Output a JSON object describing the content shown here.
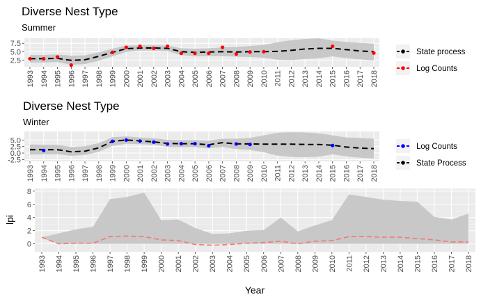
{
  "colors": {
    "panel_bg": "#ebebeb",
    "grid_major": "#ffffff",
    "ribbon": "#c8c8c8",
    "state_line": "#000000",
    "log_counts_summer": "#ff0000",
    "log_counts_winter": "#0000ff",
    "lpi_line": "#f8766d"
  },
  "chart_data": [
    {
      "type": "line",
      "title": "Diverse Nest Type",
      "subtitle": "Summer",
      "xlabel": "",
      "ylabel": "",
      "x": [
        1993,
        1994,
        1995,
        1996,
        1997,
        1998,
        1999,
        2000,
        2001,
        2002,
        2003,
        2004,
        2005,
        2006,
        2007,
        2008,
        2009,
        2010,
        2011,
        2012,
        2013,
        2014,
        2015,
        2016,
        2017,
        2018
      ],
      "xlim": [
        1992.8,
        2018.2
      ],
      "ylim": [
        0.5,
        9.0
      ],
      "yticks": [
        2.5,
        5.0,
        7.5
      ],
      "ytick_labels": [
        "2.5",
        "5.0",
        "7.5"
      ],
      "grid": true,
      "legend_position": "right",
      "series": [
        {
          "name": "State process",
          "kind": "line-dashed-with-end-points",
          "color": "#000000",
          "values": [
            2.9,
            2.9,
            3.0,
            2.4,
            2.6,
            3.6,
            4.8,
            5.9,
            6.1,
            6.1,
            6.0,
            5.0,
            4.8,
            4.9,
            5.0,
            4.9,
            5.0,
            5.0,
            5.1,
            5.4,
            5.8,
            6.0,
            6.0,
            5.6,
            5.2,
            5.0
          ]
        },
        {
          "name": "Log Counts",
          "kind": "points",
          "color": "#ff0000",
          "x": [
            1993,
            1994,
            1995,
            1996,
            1999,
            2000,
            2001,
            2002,
            2003,
            2004,
            2005,
            2006,
            2007,
            2008,
            2009,
            2010,
            2015,
            2018
          ],
          "values": [
            2.9,
            2.9,
            3.4,
            1.0,
            4.8,
            6.3,
            6.6,
            6.0,
            6.6,
            4.5,
            4.5,
            4.5,
            6.3,
            4.3,
            4.9,
            5.0,
            6.6,
            4.6
          ]
        },
        {
          "name": "",
          "kind": "ribbon",
          "color": "#c8c8c8",
          "lower": [
            1.8,
            1.8,
            1.9,
            1.1,
            1.3,
            2.3,
            3.6,
            4.9,
            5.3,
            5.3,
            5.1,
            4.0,
            3.6,
            3.7,
            3.7,
            3.5,
            3.4,
            3.2,
            2.6,
            2.5,
            2.8,
            3.0,
            3.6,
            3.1,
            2.7,
            2.4
          ],
          "upper": [
            4.0,
            4.0,
            4.2,
            3.8,
            3.9,
            4.8,
            5.9,
            6.8,
            6.9,
            6.9,
            6.8,
            6.0,
            5.9,
            6.0,
            6.3,
            6.4,
            6.7,
            7.0,
            7.8,
            8.4,
            8.8,
            9.0,
            8.3,
            7.9,
            7.6,
            7.4
          ]
        }
      ]
    },
    {
      "type": "line",
      "title": "Diverse Nest Type",
      "subtitle": "Winter",
      "xlabel": "",
      "ylabel": "",
      "x": [
        1993,
        1994,
        1995,
        1996,
        1997,
        1998,
        1999,
        2000,
        2001,
        2002,
        2003,
        2004,
        2005,
        2006,
        2007,
        2008,
        2009,
        2010,
        2011,
        2012,
        2013,
        2014,
        2015,
        2016,
        2017,
        2018
      ],
      "xlim": [
        1992.8,
        2018.2
      ],
      "ylim": [
        -3.2,
        8.3
      ],
      "yticks": [
        -2.5,
        0.0,
        2.5,
        5.0
      ],
      "ytick_labels": [
        "-2.5",
        "0.0",
        "2.5",
        "5.0"
      ],
      "grid": true,
      "legend_position": "right",
      "series": [
        {
          "name": "Log Counts",
          "kind": "points",
          "color": "#0000ff",
          "x": [
            1994,
            1999,
            2000,
            2001,
            2002,
            2003,
            2004,
            2005,
            2006,
            2008,
            2009,
            2015
          ],
          "values": [
            1.0,
            4.5,
            5.0,
            4.6,
            4.2,
            3.5,
            3.6,
            3.6,
            2.8,
            3.5,
            3.3,
            2.9
          ]
        },
        {
          "name": "State Process",
          "kind": "line-dashed-with-end-points",
          "color": "#000000",
          "values": [
            1.3,
            1.3,
            1.3,
            0.5,
            0.7,
            2.0,
            4.5,
            5.0,
            4.7,
            4.3,
            3.7,
            3.6,
            3.6,
            3.2,
            4.0,
            3.5,
            3.5,
            3.4,
            3.4,
            3.4,
            3.3,
            3.3,
            3.0,
            2.3,
            1.9,
            1.7
          ]
        },
        {
          "name": "",
          "kind": "ribbon",
          "color": "#c8c8c8",
          "lower": [
            -0.6,
            -0.5,
            -0.4,
            -1.1,
            -0.7,
            0.5,
            2.8,
            3.6,
            3.4,
            3.2,
            2.4,
            2.3,
            2.3,
            1.8,
            2.4,
            1.5,
            1.2,
            0.3,
            -1.0,
            -1.5,
            -1.6,
            -1.4,
            -0.5,
            -1.3,
            -1.8,
            -2.1
          ],
          "upper": [
            3.3,
            3.2,
            3.1,
            2.4,
            2.6,
            3.8,
            6.1,
            6.4,
            6.0,
            5.7,
            5.1,
            5.0,
            5.0,
            4.8,
            5.5,
            5.5,
            5.8,
            6.8,
            7.8,
            8.0,
            7.9,
            7.6,
            6.8,
            6.0,
            5.8,
            5.5
          ]
        }
      ]
    },
    {
      "type": "line",
      "title": "",
      "subtitle": "",
      "xlabel": "Year",
      "ylabel": "lpi",
      "x": [
        1993,
        1994,
        1995,
        1996,
        1997,
        1998,
        1999,
        2000,
        2001,
        2002,
        2003,
        2004,
        2005,
        2006,
        2007,
        2008,
        2009,
        2010,
        2011,
        2012,
        2013,
        2014,
        2015,
        2016,
        2017,
        2018
      ],
      "xlim": [
        1992.2,
        2018.7
      ],
      "ylim": [
        -1.2,
        8.4
      ],
      "yticks": [
        0,
        2,
        4,
        6,
        8
      ],
      "ytick_labels": [
        "0",
        "2",
        "4",
        "6",
        "8"
      ],
      "grid": true,
      "series": [
        {
          "name": "",
          "kind": "line-dashed",
          "color": "#f8766d",
          "values": [
            1.0,
            0.0,
            0.1,
            0.1,
            1.1,
            1.2,
            1.1,
            0.6,
            0.5,
            -0.1,
            -0.2,
            -0.1,
            0.1,
            0.2,
            0.4,
            0.0,
            0.4,
            0.5,
            1.1,
            1.1,
            1.0,
            1.0,
            0.8,
            0.6,
            0.3,
            0.3
          ]
        },
        {
          "name": "",
          "kind": "ribbon",
          "color": "#c8c8c8",
          "lower": [
            0.9,
            0.0,
            0.0,
            0.0,
            0.0,
            0.0,
            0.0,
            0.0,
            0.0,
            0.0,
            0.0,
            0.0,
            0.0,
            0.0,
            0.0,
            0.0,
            0.0,
            0.0,
            0.0,
            0.0,
            0.0,
            0.0,
            0.0,
            0.0,
            0.0,
            0.0
          ],
          "upper": [
            1.0,
            1.6,
            2.2,
            2.6,
            6.8,
            7.1,
            7.8,
            3.6,
            3.7,
            2.4,
            1.5,
            1.6,
            2.0,
            2.1,
            4.0,
            1.9,
            2.8,
            3.6,
            7.5,
            7.1,
            6.7,
            6.5,
            6.4,
            4.1,
            3.7,
            4.6
          ]
        }
      ]
    }
  ]
}
